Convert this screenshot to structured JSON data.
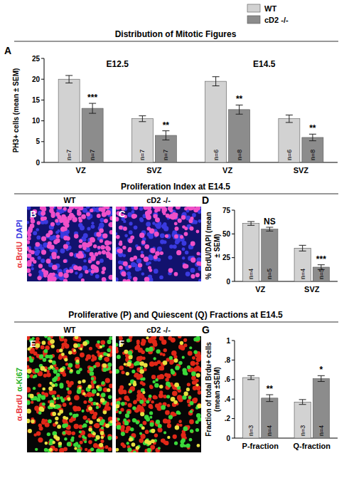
{
  "chart_data": [
    {
      "type": "bar",
      "panel": "A",
      "title": "Distribution of Mitotic Figures",
      "ylabel": "PH3+ cells (mean ± SEM)",
      "groups": [
        "E12.5",
        "E14.5"
      ],
      "categories": [
        "VZ",
        "SVZ",
        "VZ",
        "SVZ"
      ],
      "series": [
        {
          "name": "WT",
          "color": "#d2d2d2",
          "values": [
            20,
            10.5,
            19.5,
            10.5
          ],
          "errors": [
            0.9,
            0.7,
            1.1,
            0.9
          ],
          "n_labels": [
            "n=7",
            "n=7",
            "n=6",
            "n=6"
          ]
        },
        {
          "name": "cD2 -/-",
          "color": "#8c8c8c",
          "values": [
            13,
            6.5,
            12.7,
            6
          ],
          "errors": [
            1.2,
            1.1,
            1.1,
            0.8
          ],
          "n_labels": [
            "n=7",
            "n=7",
            "n=8",
            "n=8"
          ],
          "significance": [
            "***",
            "**",
            "**",
            "**"
          ]
        }
      ],
      "ylim": [
        0,
        25
      ],
      "yticks": [
        0,
        5,
        10,
        15,
        20,
        25
      ],
      "legend": "top-right"
    },
    {
      "type": "bar",
      "panel": "D",
      "ylabel": "% BrdU/DAPI (mean ± SEM)",
      "categories": [
        "VZ",
        "SVZ"
      ],
      "series": [
        {
          "name": "WT",
          "color": "#d2d2d2",
          "values": [
            61,
            35
          ],
          "errors": [
            2,
            3
          ],
          "n_labels": [
            "n=4",
            "n=4"
          ]
        },
        {
          "name": "cD2 -/-",
          "color": "#8c8c8c",
          "values": [
            55,
            15
          ],
          "errors": [
            2,
            2.5
          ],
          "n_labels": [
            "n=5",
            "n=5"
          ],
          "significance": [
            "NS",
            "***"
          ]
        }
      ],
      "ylim": [
        0,
        75
      ],
      "yticks": [
        0,
        25,
        50,
        75
      ]
    },
    {
      "type": "bar",
      "panel": "G",
      "ylabel": "Fraction of total Brdu+ cells (mean ±SEM)",
      "categories": [
        "P-fraction",
        "Q-fraction"
      ],
      "series": [
        {
          "name": "WT",
          "color": "#d2d2d2",
          "values": [
            0.62,
            0.37
          ],
          "errors": [
            0.02,
            0.025
          ],
          "n_labels": [
            "n=3",
            "n=3"
          ]
        },
        {
          "name": "cD2 -/-",
          "color": "#8c8c8c",
          "values": [
            0.41,
            0.61
          ],
          "errors": [
            0.035,
            0.03
          ],
          "n_labels": [
            "n=4",
            "n=4"
          ],
          "significance": [
            "**",
            "*"
          ]
        }
      ],
      "ylim": [
        0,
        1
      ],
      "yticks": [
        0,
        {
          "value": 0.2,
          "label": ".2"
        },
        {
          "value": 0.4,
          "label": ".4"
        },
        {
          "value": 0.6,
          "label": ".6"
        },
        {
          "value": 0.8,
          "label": ".8"
        },
        1
      ]
    }
  ],
  "sections": [
    {
      "title": "Proliferation Index at E14.5",
      "stains": [
        {
          "text": "α-BrdU",
          "color": "#e8303a"
        },
        {
          "text": "DAPI",
          "color": "#3030e0"
        }
      ]
    },
    {
      "title": "Proliferative (P) and Quiescent (Q) Fractions at E14.5",
      "stains": [
        {
          "text": "α-BrdU",
          "color": "#e8303a"
        },
        {
          "text": "α-Ki67",
          "color": "#20b020"
        }
      ]
    }
  ],
  "images": [
    {
      "panel": "B",
      "label": "WT"
    },
    {
      "panel": "C",
      "label": "cD2 -/-"
    },
    {
      "panel": "E",
      "label": "WT"
    },
    {
      "panel": "F",
      "label": "cD2 -/-"
    }
  ]
}
